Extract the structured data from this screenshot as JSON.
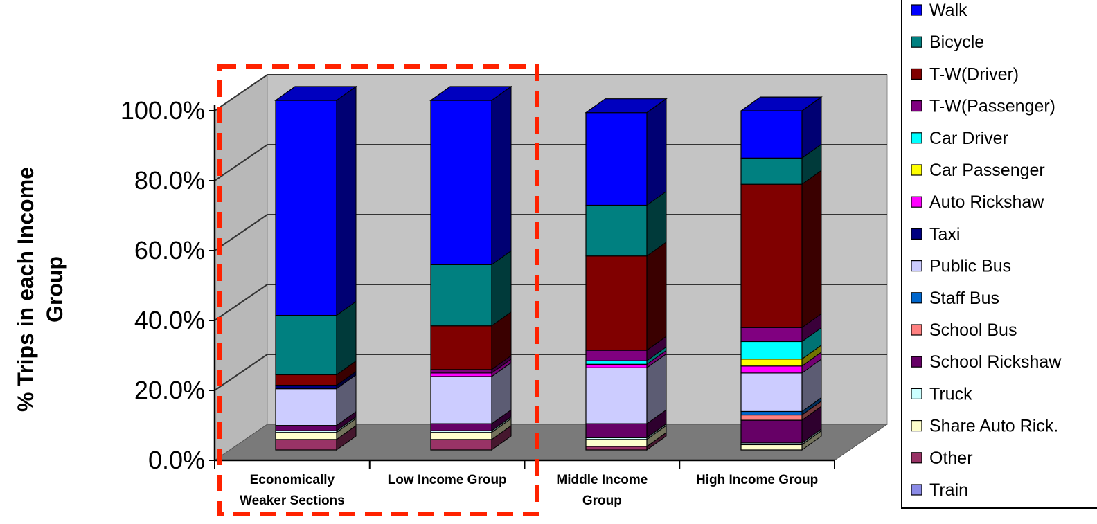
{
  "chart_data": {
    "type": "bar",
    "stacked": true,
    "three_d": true,
    "ylabel": "% Trips in each Income Group",
    "ylabel_lines": [
      "% Trips in each Income",
      "Group"
    ],
    "ylim": [
      0,
      100
    ],
    "yticks": [
      "0.0%",
      "20.0%",
      "40.0%",
      "60.0%",
      "80.0%",
      "100.0%"
    ],
    "categories": [
      [
        "Economically",
        "Weaker Sections"
      ],
      [
        "Low Income Group"
      ],
      [
        "Middle Income",
        "Group"
      ],
      [
        "High Income Group"
      ]
    ],
    "legend_position": "right",
    "highlight": {
      "style": "dashed-rectangle",
      "color": "#ff2200",
      "covers_categories": [
        0,
        1
      ]
    },
    "colors": {
      "wall": "#c4c4c4",
      "floor": "#7a7a7a",
      "grid": "#333333"
    },
    "series": [
      {
        "name": "Train",
        "color": "#8a8ae6",
        "values": [
          0,
          0,
          0,
          0
        ]
      },
      {
        "name": "Other",
        "color": "#993366",
        "values": [
          3,
          3,
          1,
          0
        ]
      },
      {
        "name": "Share Auto Rick.",
        "color": "#ffffcc",
        "values": [
          2,
          2,
          2,
          1.5
        ]
      },
      {
        "name": "Truck",
        "color": "#ccffff",
        "values": [
          0.5,
          0.5,
          0.5,
          0.5
        ]
      },
      {
        "name": "School Rickshaw",
        "color": "#660066",
        "values": [
          1.5,
          2,
          4,
          6.5
        ]
      },
      {
        "name": "School Bus",
        "color": "#ff8080",
        "values": [
          0,
          0,
          0,
          1.5
        ]
      },
      {
        "name": "Staff Bus",
        "color": "#0066cc",
        "values": [
          0,
          0,
          0,
          1
        ]
      },
      {
        "name": "Public Bus",
        "color": "#ccccff",
        "values": [
          10.5,
          13.5,
          16,
          11
        ]
      },
      {
        "name": "Taxi",
        "color": "#000080",
        "values": [
          1,
          0,
          0,
          0
        ]
      },
      {
        "name": "Auto Rickshaw",
        "color": "#ff00ff",
        "values": [
          0,
          1,
          1,
          2
        ]
      },
      {
        "name": "Car Passenger",
        "color": "#ffff00",
        "values": [
          0,
          0,
          0,
          2
        ]
      },
      {
        "name": "Car Driver",
        "color": "#00ffff",
        "values": [
          0,
          0,
          1,
          5
        ]
      },
      {
        "name": "T-W(Passenger)",
        "color": "#800080",
        "values": [
          0,
          1,
          3,
          4
        ]
      },
      {
        "name": "T-W(Driver)",
        "color": "#800000",
        "values": [
          3,
          12.5,
          27,
          41
        ]
      },
      {
        "name": "Bicycle",
        "color": "#008080",
        "values": [
          17,
          17.5,
          14.5,
          7.5
        ]
      },
      {
        "name": "Walk",
        "color": "#0000ff",
        "values": [
          61.5,
          47,
          26.5,
          13.5
        ]
      }
    ]
  }
}
